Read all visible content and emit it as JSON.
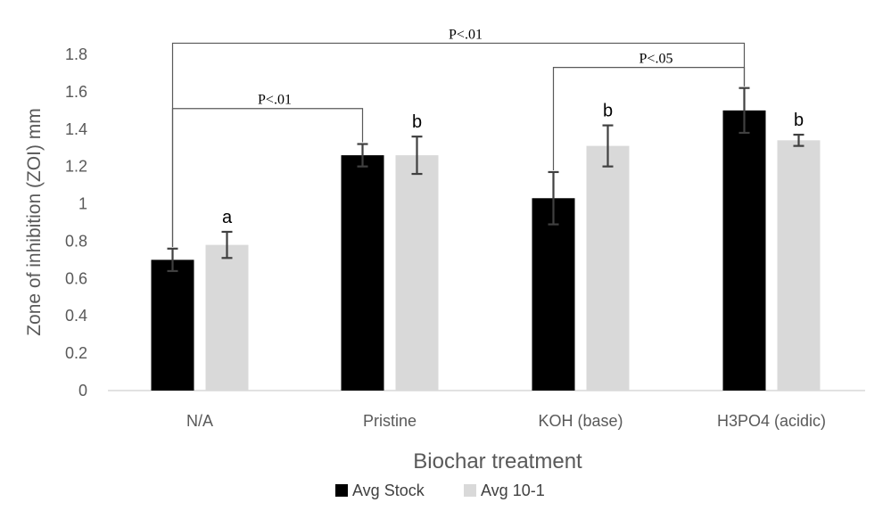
{
  "chart_data": {
    "type": "bar",
    "title": "",
    "xlabel": "Biochar treatment",
    "ylabel": "Zone of inhibition (ZOI) mm",
    "ylim": [
      0,
      1.8
    ],
    "yticks": [
      0,
      0.2,
      0.4,
      0.6,
      0.8,
      1,
      1.2,
      1.4,
      1.6,
      1.8
    ],
    "ytick_labels": [
      "0",
      "0.2",
      "0.4",
      "0.6",
      "0.8",
      "1",
      "1.2",
      "1.4",
      "1.6",
      "1.8"
    ],
    "grid": false,
    "legend_position": "bottom",
    "categories": [
      "N/A",
      "Pristine",
      "KOH (base)",
      "H3PO4 (acidic)"
    ],
    "series": [
      {
        "name": "Avg Stock",
        "color": "#000000",
        "values": [
          0.7,
          1.26,
          1.03,
          1.5
        ],
        "errors": [
          0.06,
          0.06,
          0.14,
          0.12
        ]
      },
      {
        "name": "Avg 10-1",
        "color": "#d9d9d9",
        "values": [
          0.78,
          1.26,
          1.31,
          1.34
        ],
        "errors": [
          0.07,
          0.1,
          0.11,
          0.03
        ]
      }
    ],
    "letter_labels": [
      "a",
      "b",
      "b",
      "b"
    ],
    "significance_brackets": [
      {
        "label": "P<.01",
        "from": {
          "category": 0,
          "series": 0
        },
        "to": {
          "category": 3,
          "series": 0
        },
        "level": 1.86
      },
      {
        "label": "P<.05",
        "from": {
          "category": 2,
          "series": 0
        },
        "to": {
          "category": 3,
          "series": 0
        },
        "level": 1.73
      },
      {
        "label": "P<.01",
        "from": {
          "category": 0,
          "series": 0
        },
        "to": {
          "category": 1,
          "series": 0
        },
        "level": 1.51
      }
    ],
    "error_bar_color": "#404040",
    "axis_color": "#d9d9d9"
  }
}
